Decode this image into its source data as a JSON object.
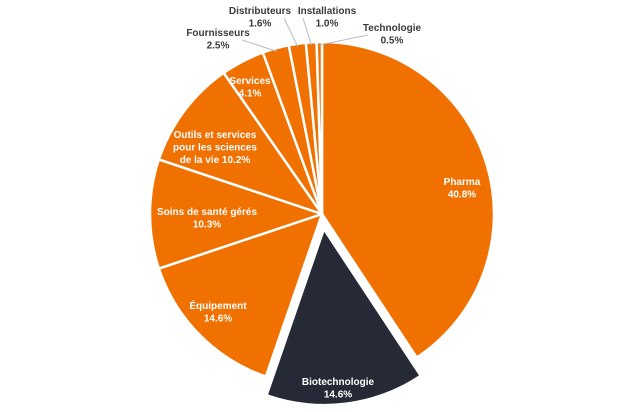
{
  "chart_data": {
    "type": "pie",
    "title": "",
    "start": "top-clockwise",
    "colors": {
      "default": "#f07000",
      "highlight": "#262a37",
      "separator": "#ffffff",
      "leader": "#b8bcc8"
    },
    "slices": [
      {
        "label": "Pharma",
        "value": 40.8,
        "value_label": "40.8%",
        "highlight": false,
        "outside": false
      },
      {
        "label": "Biotechnologie",
        "value": 14.6,
        "value_label": "14.6%",
        "highlight": true,
        "outside": false
      },
      {
        "label": "Équipement",
        "value": 14.6,
        "value_label": "14.6%",
        "highlight": false,
        "outside": false
      },
      {
        "label": "Soins de santé gérés",
        "value": 10.3,
        "value_label": "10.3%",
        "highlight": false,
        "outside": false
      },
      {
        "label": "Outils et services pour les sciences de la vie",
        "label_lines": [
          "Outils et services",
          "pour les sciences",
          "de la vie  10.2%"
        ],
        "value": 10.2,
        "value_label": "10.2%",
        "highlight": false,
        "outside": false
      },
      {
        "label": "Services",
        "value": 4.1,
        "value_label": "4.1%",
        "highlight": false,
        "outside": false
      },
      {
        "label": "Fournisseurs",
        "value": 2.5,
        "value_label": "2.5%",
        "highlight": false,
        "outside": true
      },
      {
        "label": "Distributeurs",
        "value": 1.6,
        "value_label": "1.6%",
        "highlight": false,
        "outside": true
      },
      {
        "label": "Installations",
        "value": 1.0,
        "value_label": "1.0%",
        "highlight": false,
        "outside": true
      },
      {
        "label": "Technologie",
        "value": 0.5,
        "value_label": "0.5%",
        "highlight": false,
        "outside": true
      }
    ]
  }
}
